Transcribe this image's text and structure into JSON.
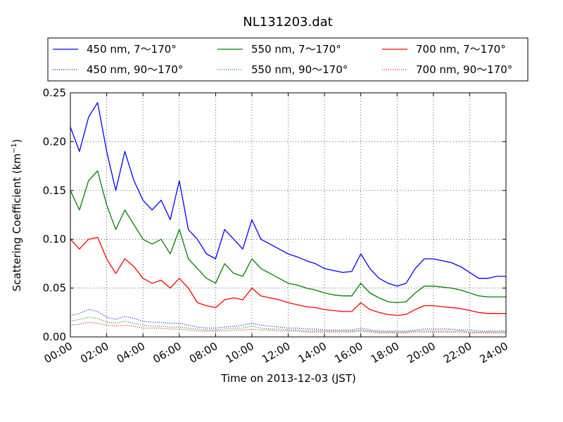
{
  "chart_data": {
    "type": "line",
    "title": "NL131203.dat",
    "xlabel": "Time on 2013-12-03 (JST)",
    "ylabel_main": "Scattering Coefficient (km",
    "ylabel_sup": "−1",
    "ylabel_close": ")",
    "xlim": [
      "00:00",
      "24:00"
    ],
    "ylim": [
      0,
      0.25
    ],
    "grid": true,
    "legend_placement": "above-plot",
    "x_ticks": [
      "00:00",
      "02:00",
      "04:00",
      "06:00",
      "08:00",
      "10:00",
      "12:00",
      "14:00",
      "16:00",
      "18:00",
      "20:00",
      "22:00",
      "24:00"
    ],
    "y_ticks": [
      "0.00",
      "0.05",
      "0.10",
      "0.15",
      "0.20",
      "0.25"
    ],
    "x_hours": [
      0,
      0.5,
      1,
      1.5,
      2,
      2.5,
      3,
      3.5,
      4,
      4.5,
      5,
      5.5,
      6,
      6.5,
      7,
      7.5,
      8,
      8.5,
      9,
      9.5,
      10,
      10.5,
      11,
      11.5,
      12,
      12.5,
      13,
      13.5,
      14,
      14.5,
      15,
      15.5,
      16,
      16.5,
      17,
      17.5,
      18,
      18.5,
      19,
      19.5,
      20,
      20.5,
      21,
      21.5,
      22,
      22.5,
      23,
      23.5,
      24
    ],
    "series": [
      {
        "name": "450 nm, 7～170°",
        "color": "#0000ff",
        "style": "solid",
        "values": [
          0.215,
          0.19,
          0.225,
          0.24,
          0.19,
          0.15,
          0.19,
          0.16,
          0.14,
          0.13,
          0.14,
          0.12,
          0.16,
          0.11,
          0.1,
          0.085,
          0.08,
          0.11,
          0.1,
          0.09,
          0.12,
          0.1,
          0.095,
          0.09,
          0.085,
          0.082,
          0.078,
          0.075,
          0.07,
          0.068,
          0.066,
          0.067,
          0.085,
          0.07,
          0.06,
          0.055,
          0.052,
          0.055,
          0.07,
          0.08,
          0.08,
          0.078,
          0.076,
          0.072,
          0.066,
          0.06,
          0.06,
          0.062,
          0.062
        ]
      },
      {
        "name": "550 nm, 7～170°",
        "color": "#008000",
        "style": "solid",
        "values": [
          0.15,
          0.13,
          0.16,
          0.17,
          0.135,
          0.11,
          0.13,
          0.115,
          0.1,
          0.095,
          0.1,
          0.085,
          0.11,
          0.08,
          0.07,
          0.06,
          0.055,
          0.075,
          0.065,
          0.062,
          0.08,
          0.07,
          0.065,
          0.06,
          0.055,
          0.053,
          0.05,
          0.048,
          0.045,
          0.043,
          0.042,
          0.042,
          0.055,
          0.045,
          0.04,
          0.036,
          0.035,
          0.036,
          0.045,
          0.052,
          0.052,
          0.051,
          0.05,
          0.048,
          0.045,
          0.042,
          0.041,
          0.041,
          0.041
        ]
      },
      {
        "name": "700 nm, 7～170°",
        "color": "#ff0000",
        "style": "solid",
        "values": [
          0.1,
          0.09,
          0.1,
          0.102,
          0.08,
          0.065,
          0.08,
          0.072,
          0.06,
          0.055,
          0.058,
          0.05,
          0.06,
          0.05,
          0.035,
          0.032,
          0.03,
          0.038,
          0.04,
          0.038,
          0.05,
          0.042,
          0.04,
          0.038,
          0.035,
          0.033,
          0.031,
          0.03,
          0.028,
          0.027,
          0.026,
          0.026,
          0.035,
          0.028,
          0.025,
          0.023,
          0.022,
          0.023,
          0.028,
          0.032,
          0.032,
          0.031,
          0.03,
          0.029,
          0.027,
          0.025,
          0.024,
          0.024,
          0.024
        ]
      },
      {
        "name": "450 nm, 90～170°",
        "color": "#0000ff",
        "style": "dotted",
        "values": [
          0.022,
          0.024,
          0.028,
          0.026,
          0.02,
          0.018,
          0.021,
          0.019,
          0.016,
          0.015,
          0.015,
          0.014,
          0.014,
          0.012,
          0.01,
          0.009,
          0.009,
          0.01,
          0.011,
          0.012,
          0.014,
          0.012,
          0.011,
          0.01,
          0.009,
          0.009,
          0.008,
          0.008,
          0.007,
          0.007,
          0.007,
          0.007,
          0.009,
          0.007,
          0.006,
          0.006,
          0.006,
          0.006,
          0.007,
          0.008,
          0.008,
          0.008,
          0.008,
          0.007,
          0.007,
          0.006,
          0.006,
          0.006,
          0.006
        ]
      },
      {
        "name": "550 nm, 90～170°",
        "color": "#008000",
        "style": "dotted",
        "values": [
          0.016,
          0.018,
          0.02,
          0.019,
          0.015,
          0.014,
          0.016,
          0.014,
          0.012,
          0.011,
          0.011,
          0.01,
          0.01,
          0.009,
          0.008,
          0.007,
          0.007,
          0.008,
          0.009,
          0.009,
          0.011,
          0.009,
          0.008,
          0.008,
          0.007,
          0.007,
          0.006,
          0.006,
          0.006,
          0.006,
          0.006,
          0.006,
          0.007,
          0.006,
          0.005,
          0.005,
          0.005,
          0.005,
          0.006,
          0.006,
          0.006,
          0.006,
          0.006,
          0.006,
          0.005,
          0.005,
          0.005,
          0.005,
          0.005
        ]
      },
      {
        "name": "700 nm, 90～170°",
        "color": "#ff0000",
        "style": "dotted",
        "values": [
          0.012,
          0.013,
          0.015,
          0.014,
          0.012,
          0.011,
          0.012,
          0.011,
          0.009,
          0.009,
          0.009,
          0.008,
          0.008,
          0.007,
          0.006,
          0.006,
          0.006,
          0.006,
          0.007,
          0.007,
          0.008,
          0.007,
          0.007,
          0.006,
          0.006,
          0.006,
          0.005,
          0.005,
          0.005,
          0.005,
          0.005,
          0.005,
          0.006,
          0.005,
          0.004,
          0.004,
          0.004,
          0.004,
          0.005,
          0.005,
          0.005,
          0.005,
          0.005,
          0.005,
          0.004,
          0.004,
          0.004,
          0.004,
          0.004
        ]
      }
    ]
  }
}
